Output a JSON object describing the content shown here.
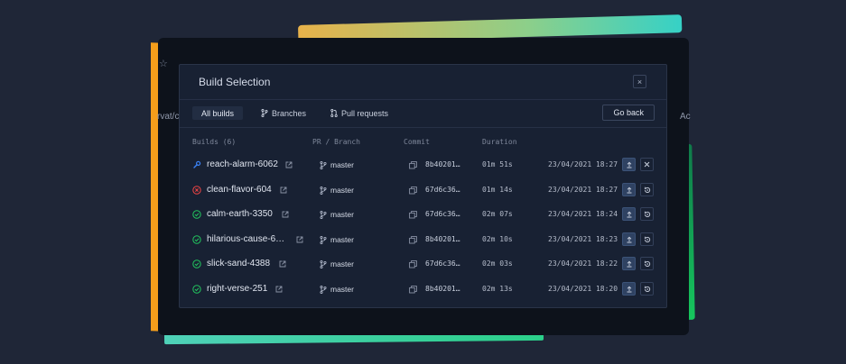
{
  "backdrop": {
    "left_text": "rvat/c",
    "right_text": "Ac"
  },
  "modal": {
    "title": "Build Selection",
    "close_label": "×"
  },
  "tabs": [
    {
      "label": "All builds",
      "icon": "none",
      "active": true
    },
    {
      "label": "Branches",
      "icon": "branch-icon",
      "active": false
    },
    {
      "label": "Pull requests",
      "icon": "pull-request-icon",
      "active": false
    }
  ],
  "go_back_label": "Go back",
  "columns": {
    "builds": "Builds (6)",
    "pr_branch": "PR / Branch",
    "commit": "Commit",
    "duration": "Duration"
  },
  "colors": {
    "success": "#22c55e",
    "error": "#ef4444",
    "running": "#3b82f6"
  },
  "builds": [
    {
      "name": "reach-alarm-6062",
      "status": "running",
      "branch": "master",
      "commit": "8b40201…",
      "duration": "01m 51s",
      "timestamp": "23/04/2021 18:27",
      "action": "cancel"
    },
    {
      "name": "clean-flavor-604",
      "status": "error",
      "branch": "master",
      "commit": "67d6c36…",
      "duration": "01m 14s",
      "timestamp": "23/04/2021 18:27",
      "action": "rerun"
    },
    {
      "name": "calm-earth-3350",
      "status": "success",
      "branch": "master",
      "commit": "67d6c36…",
      "duration": "02m 07s",
      "timestamp": "23/04/2021 18:24",
      "action": "rerun"
    },
    {
      "name": "hilarious-cause-6…",
      "status": "success",
      "branch": "master",
      "commit": "8b40201…",
      "duration": "02m 10s",
      "timestamp": "23/04/2021 18:23",
      "action": "rerun"
    },
    {
      "name": "slick-sand-4388",
      "status": "success",
      "branch": "master",
      "commit": "67d6c36…",
      "duration": "02m 03s",
      "timestamp": "23/04/2021 18:22",
      "action": "rerun"
    },
    {
      "name": "right-verse-251",
      "status": "success",
      "branch": "master",
      "commit": "8b40201…",
      "duration": "02m 13s",
      "timestamp": "23/04/2021 18:20",
      "action": "rerun"
    }
  ]
}
